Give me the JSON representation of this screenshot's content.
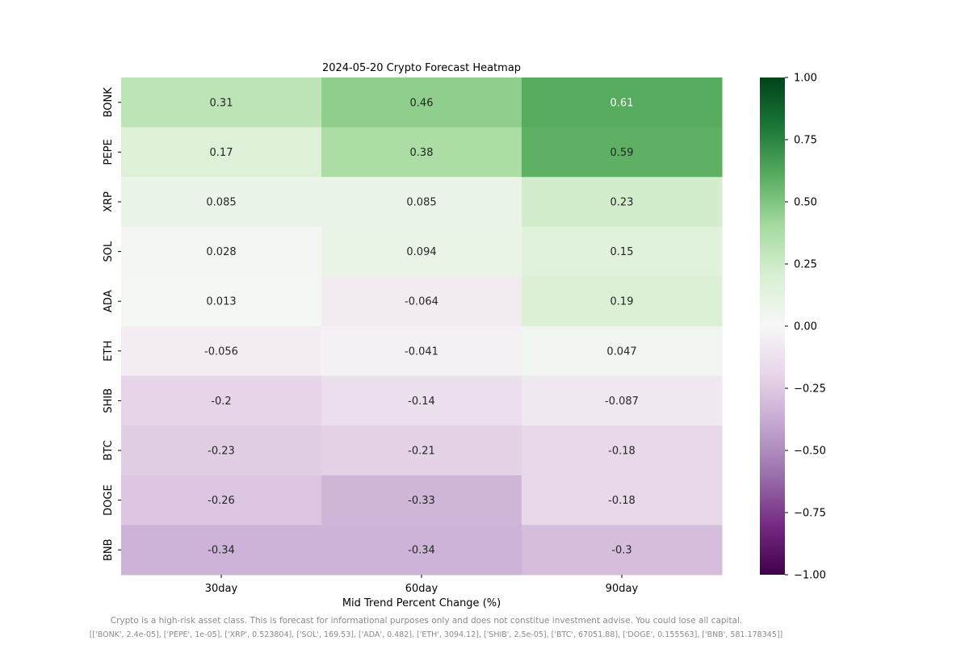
{
  "chart_data": {
    "type": "heatmap",
    "title": "2024-05-20 Crypto Forecast Heatmap",
    "xlabel": "Mid Trend Percent Change (%)",
    "ylabel": "",
    "columns": [
      "30day",
      "60day",
      "90day"
    ],
    "rows": [
      "BONK",
      "PEPE",
      "XRP",
      "SOL",
      "ADA",
      "ETH",
      "SHIB",
      "BTC",
      "DOGE",
      "BNB"
    ],
    "values": [
      [
        0.31,
        0.46,
        0.61
      ],
      [
        0.17,
        0.38,
        0.59
      ],
      [
        0.085,
        0.085,
        0.23
      ],
      [
        0.028,
        0.094,
        0.15
      ],
      [
        0.013,
        -0.064,
        0.19
      ],
      [
        -0.056,
        -0.041,
        0.047
      ],
      [
        -0.2,
        -0.14,
        -0.087
      ],
      [
        -0.23,
        -0.21,
        -0.18
      ],
      [
        -0.26,
        -0.33,
        -0.18
      ],
      [
        -0.34,
        -0.34,
        -0.3
      ]
    ],
    "colormap": "PRGn",
    "vmin": -1,
    "vmax": 1,
    "colorbar_ticks": [
      1,
      0.75,
      0.5,
      0.25,
      0,
      -0.25,
      -0.5,
      -0.75,
      -1
    ],
    "colorbar_tick_labels": [
      "1.00",
      "0.75",
      "0.50",
      "0.25",
      "0.00",
      "−0.25",
      "−0.50",
      "−0.75",
      "−1.00"
    ]
  },
  "footer": {
    "disclaimer": "Crypto is a high-risk asset class. This is forecast for informational purposes only and does not constitue investment advise. You could lose all capital.",
    "prices": "[['BONK', 2.4e-05], ['PEPE', 1e-05], ['XRP', 0.523804], ['SOL', 169.53], ['ADA', 0.482], ['ETH', 3094.12], ['SHIB', 2.5e-05], ['BTC', 67051.88], ['DOGE', 0.155563], ['BNB', 581.178345]]"
  }
}
